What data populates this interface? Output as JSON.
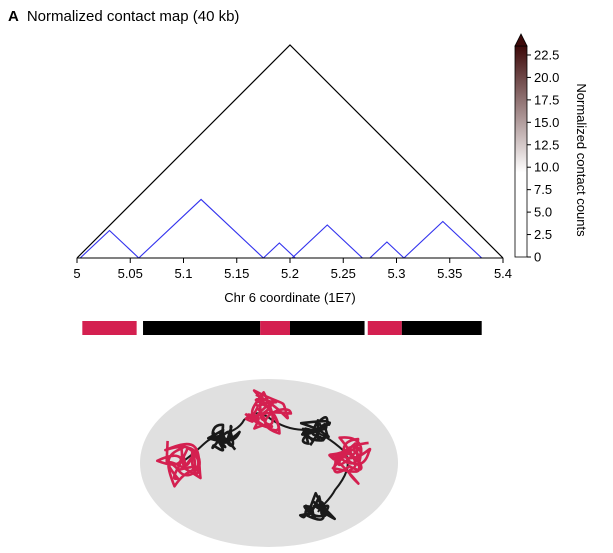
{
  "panel": {
    "letter": "A",
    "title": "Normalized contact map (40 kb)"
  },
  "chart_data": {
    "type": "triangle-contact-map",
    "title": "Normalized contact map (40 kb)",
    "xlabel": "Chr 6 coordinate (1E7)",
    "xlim": [
      5.0,
      5.4
    ],
    "xticks": [
      5,
      5.05,
      5.1,
      5.15,
      5.2,
      5.25,
      5.3,
      5.35,
      5.4
    ],
    "xtick_labels": [
      "5",
      "5.05",
      "5.1",
      "5.15",
      "5.2",
      "5.25",
      "5.3",
      "5.35",
      "5.4"
    ],
    "colorbar": {
      "label": "Normalized contact counts",
      "range": [
        0,
        23.5
      ],
      "ticks": [
        0,
        2.5,
        5.0,
        7.5,
        10.0,
        12.5,
        15.0,
        17.5,
        20.0,
        22.5
      ],
      "tick_labels": [
        "0",
        "2.5",
        "5.0",
        "7.5",
        "10.0",
        "12.5",
        "15.0",
        "17.5",
        "20.0",
        "22.5"
      ],
      "color_top": "#3d0a0a",
      "color_bottom": "#ffffff"
    },
    "domains": [
      {
        "level": "outer",
        "start": 5.0,
        "end": 5.4,
        "color": "#000000"
      },
      {
        "level": "sub",
        "start": 5.003,
        "end": 5.058,
        "color": "#3333ee"
      },
      {
        "level": "sub",
        "start": 5.058,
        "end": 5.175,
        "color": "#3333ee"
      },
      {
        "level": "sub",
        "start": 5.175,
        "end": 5.205,
        "color": "#3333ee"
      },
      {
        "level": "sub",
        "start": 5.202,
        "end": 5.268,
        "color": "#3333ee"
      },
      {
        "level": "sub",
        "start": 5.275,
        "end": 5.307,
        "color": "#3333ee"
      },
      {
        "level": "sub",
        "start": 5.307,
        "end": 5.38,
        "color": "#3333ee"
      }
    ]
  },
  "compartment_bar": {
    "segments": [
      {
        "start": 5.005,
        "end": 5.056,
        "type": "A",
        "color": "#d42050"
      },
      {
        "start": 5.062,
        "end": 5.172,
        "type": "B",
        "color": "#000000"
      },
      {
        "start": 5.172,
        "end": 5.2,
        "type": "A",
        "color": "#d42050"
      },
      {
        "start": 5.2,
        "end": 5.27,
        "type": "B",
        "color": "#000000"
      },
      {
        "start": 5.273,
        "end": 5.305,
        "type": "A",
        "color": "#d42050"
      },
      {
        "start": 5.305,
        "end": 5.38,
        "type": "B",
        "color": "#000000"
      }
    ]
  },
  "illustration": {
    "nucleus_color": "#e0e0e0",
    "active_color": "#d42050",
    "inactive_color": "#1a1a1a"
  }
}
